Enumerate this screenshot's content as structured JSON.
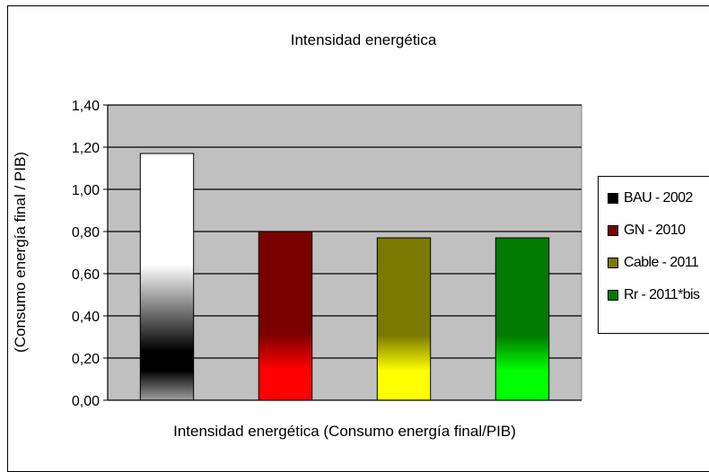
{
  "chart_data": {
    "type": "bar",
    "title": "Intensidad energética",
    "xlabel": "Intensidad energética (Consumo energía final/PIB)",
    "ylabel": "(Consumo energía final / PIB)",
    "ylim": [
      0,
      1.4
    ],
    "yticks": [
      "0,00",
      "0,20",
      "0,40",
      "0,60",
      "0,80",
      "1,00",
      "1,20",
      "1,40"
    ],
    "grid": true,
    "legend_position": "right",
    "series": [
      {
        "name": "BAU - 2002",
        "value": 1.17,
        "colors": {
          "dark": "#000000",
          "light": "#ffffff"
        }
      },
      {
        "name": "GN - 2010",
        "value": 0.8,
        "colors": {
          "dark": "#7a0000",
          "light": "#ff0000"
        }
      },
      {
        "name": "Cable - 2011",
        "value": 0.77,
        "colors": {
          "dark": "#7a7a00",
          "light": "#ffff00"
        }
      },
      {
        "name": "Rr - 2011*bis",
        "value": 0.77,
        "colors": {
          "dark": "#007a00",
          "light": "#00ff00"
        }
      }
    ],
    "plot_background": "#c0c0c0"
  }
}
